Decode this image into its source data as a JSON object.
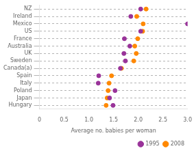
{
  "chart_data": {
    "type": "dot",
    "xlabel": "Average no. babies per woman",
    "categories": [
      "NZ",
      "Ireland",
      "Mexico",
      "US",
      "France",
      "Australia",
      "UK",
      "Sweden",
      "Canada(a)",
      "Spain",
      "Italy",
      "Poland",
      "Japan",
      "Hungary"
    ],
    "series": [
      {
        "name": "1995",
        "color": "#993399",
        "values": [
          2.05,
          1.85,
          3.0,
          2.05,
          1.72,
          1.83,
          1.71,
          1.74,
          1.64,
          1.2,
          1.19,
          1.53,
          1.42,
          1.49
        ]
      },
      {
        "name": "2008",
        "color": "#ff8800",
        "values": [
          2.16,
          1.97,
          2.1,
          2.09,
          1.99,
          1.93,
          1.96,
          1.91,
          1.66,
          1.46,
          1.41,
          1.39,
          1.37,
          1.35
        ]
      }
    ],
    "xlim": [
      0,
      3.0
    ],
    "xticks": [
      0,
      0.5,
      {
        "value": 1,
        "label": "1.0"
      },
      1.5,
      {
        "value": 2,
        "label": "2.0"
      },
      2.5,
      {
        "value": 3,
        "label": "3.0"
      }
    ],
    "grid": "y",
    "legend": "lower right"
  }
}
